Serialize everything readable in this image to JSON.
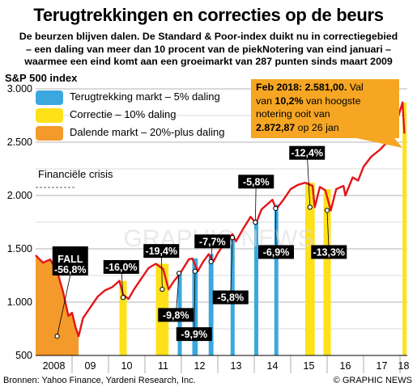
{
  "title": "Terugtrekkingen en correcties op de beurs",
  "subtitle_lines": [
    "De beurzen blijven dalen. De Standard & Poor-index duikt nu in correctiegebied",
    "– een daling van meer dan 10 procent van de piekNotering van eind januari –",
    "waarmee een eind komt aan een groeimarkt van 287 punten sinds maart 2009"
  ],
  "series_label": "S&P 500 index",
  "legend": [
    {
      "label": "Terugtrekking markt – 5% daling",
      "color": "#3aa8df"
    },
    {
      "label": "Correctie – 10% daling",
      "color": "#ffe11a"
    },
    {
      "label": "Dalende markt – 20%-plus daling",
      "color": "#f39a2a"
    }
  ],
  "callout": {
    "line1_bold": "Feb 2018: 2.581,00.",
    "line1_rest": " Val",
    "line2_pre": "van ",
    "line2_bold": "10,2%",
    "line2_rest": " van hoogste",
    "line3": "notering ooit van",
    "line4_bold": "2.872,87",
    "line4_rest": " op 26 jan"
  },
  "annotation_financial": "Financiële crisis",
  "footer_source": "Bronnen: Yahoo Finance, Yardeni Research, Inc.",
  "footer_credit": "© GRAPHIC NEWS",
  "watermark": "GRAPHIC NEWS",
  "colors": {
    "line": "#e3151a",
    "pullback": "#3aa8df",
    "correction": "#ffe11a",
    "bear": "#f39a2a",
    "callout": "#f6a623"
  },
  "chart_data": {
    "type": "line",
    "x_ticks": [
      "2008",
      "09",
      "10",
      "11",
      "12",
      "13",
      "14",
      "15",
      "16",
      "17",
      "18"
    ],
    "y_ticks": [
      "500",
      "1.000",
      "1.500",
      "2.000",
      "2.500",
      "3.000"
    ],
    "ylim": [
      500,
      3000
    ],
    "xlim": [
      2008.0,
      2018.2
    ],
    "grid": true,
    "series": [
      {
        "values": [
          [
            2008.0,
            1440
          ],
          [
            2008.2,
            1370
          ],
          [
            2008.4,
            1400
          ],
          [
            2008.6,
            1280
          ],
          [
            2008.75,
            1100
          ],
          [
            2008.9,
            870
          ],
          [
            2009.0,
            900
          ],
          [
            2009.1,
            760
          ],
          [
            2009.18,
            680
          ],
          [
            2009.3,
            850
          ],
          [
            2009.5,
            950
          ],
          [
            2009.7,
            1050
          ],
          [
            2009.9,
            1110
          ],
          [
            2010.1,
            1140
          ],
          [
            2010.3,
            1200
          ],
          [
            2010.4,
            1070
          ],
          [
            2010.55,
            1030
          ],
          [
            2010.7,
            1120
          ],
          [
            2010.9,
            1220
          ],
          [
            2011.1,
            1320
          ],
          [
            2011.3,
            1360
          ],
          [
            2011.5,
            1310
          ],
          [
            2011.65,
            1120
          ],
          [
            2011.8,
            1200
          ],
          [
            2011.95,
            1260
          ],
          [
            2012.2,
            1400
          ],
          [
            2012.3,
            1410
          ],
          [
            2012.45,
            1290
          ],
          [
            2012.6,
            1380
          ],
          [
            2012.75,
            1450
          ],
          [
            2012.88,
            1380
          ],
          [
            2013.0,
            1460
          ],
          [
            2013.2,
            1560
          ],
          [
            2013.4,
            1640
          ],
          [
            2013.5,
            1570
          ],
          [
            2013.7,
            1690
          ],
          [
            2013.9,
            1800
          ],
          [
            2014.05,
            1740
          ],
          [
            2014.2,
            1870
          ],
          [
            2014.5,
            1960
          ],
          [
            2014.6,
            1870
          ],
          [
            2014.8,
            1960
          ],
          [
            2015.0,
            2060
          ],
          [
            2015.2,
            2100
          ],
          [
            2015.4,
            2120
          ],
          [
            2015.6,
            2090
          ],
          [
            2015.66,
            1890
          ],
          [
            2015.8,
            2080
          ],
          [
            2015.95,
            2050
          ],
          [
            2016.1,
            1860
          ],
          [
            2016.25,
            2060
          ],
          [
            2016.45,
            2090
          ],
          [
            2016.5,
            2000
          ],
          [
            2016.7,
            2170
          ],
          [
            2016.85,
            2140
          ],
          [
            2017.0,
            2270
          ],
          [
            2017.2,
            2360
          ],
          [
            2017.45,
            2430
          ],
          [
            2017.7,
            2520
          ],
          [
            2017.9,
            2680
          ],
          [
            2018.07,
            2873
          ],
          [
            2018.12,
            2581
          ]
        ]
      }
    ],
    "events": [
      {
        "kind": "bear",
        "start": 2008.0,
        "end": 2009.18,
        "label": "-56,8%",
        "prefix": "FALL"
      },
      {
        "kind": "correction",
        "start": 2010.3,
        "end": 2010.5,
        "label": "-16,0%"
      },
      {
        "kind": "correction",
        "start": 2011.3,
        "end": 2011.65,
        "label": "-19,4%"
      },
      {
        "kind": "pullback",
        "start": 2011.9,
        "end": 2011.97,
        "label": "-9,8%"
      },
      {
        "kind": "pullback",
        "start": 2012.3,
        "end": 2012.45,
        "label": "-9,9%"
      },
      {
        "kind": "pullback",
        "start": 2012.75,
        "end": 2012.88,
        "label": "-7,7%"
      },
      {
        "kind": "pullback",
        "start": 2013.35,
        "end": 2013.45,
        "label": "-5,8%"
      },
      {
        "kind": "pullback",
        "start": 2014.0,
        "end": 2014.06,
        "label": "-5,8%"
      },
      {
        "kind": "pullback",
        "start": 2014.55,
        "end": 2014.62,
        "label": "-6,9%"
      },
      {
        "kind": "correction",
        "start": 2015.4,
        "end": 2015.66,
        "label": "-12,4%"
      },
      {
        "kind": "correction",
        "start": 2015.9,
        "end": 2016.1,
        "label": "-13,3%"
      },
      {
        "kind": "correction",
        "start": 2018.07,
        "end": 2018.12,
        "label": ""
      }
    ]
  }
}
